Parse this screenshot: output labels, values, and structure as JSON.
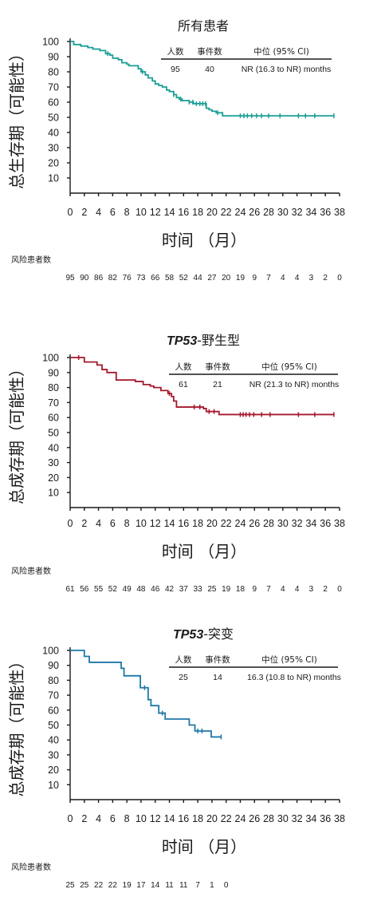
{
  "chart_data": [
    {
      "type": "line",
      "title": "所有患者",
      "title_italic": "",
      "ylabel": "总生存期（可能性）",
      "xlabel": "时间 （月）",
      "color": "#1a9e96",
      "xlim": [
        0,
        38
      ],
      "ylim": [
        0,
        100
      ],
      "xticks": [
        "0",
        "2",
        "4",
        "6",
        "8",
        "10",
        "12",
        "14",
        "16",
        "18",
        "20",
        "22",
        "24",
        "26",
        "28",
        "30",
        "32",
        "34",
        "36",
        "38"
      ],
      "yticks": [
        "10",
        "20",
        "30",
        "40",
        "50",
        "60",
        "70",
        "80",
        "90",
        "100"
      ],
      "x": [
        0,
        0.5,
        1.5,
        2.5,
        3.2,
        4.2,
        5.0,
        5.6,
        6.0,
        6.8,
        7.3,
        8.0,
        8.3,
        8.8,
        9.6,
        10.0,
        10.6,
        11.0,
        11.6,
        12.0,
        12.5,
        13.0,
        13.6,
        14.0,
        14.6,
        15.0,
        15.4,
        15.8,
        16.4,
        16.8,
        17.4,
        18.0,
        19.2,
        19.6,
        20.0,
        20.6,
        21.5,
        37.2
      ],
      "y": [
        100,
        98,
        97,
        96,
        95,
        94,
        92,
        91,
        89,
        88,
        86,
        85,
        84,
        84,
        82,
        80,
        78,
        76,
        74,
        72,
        71,
        70,
        68,
        67,
        65,
        63,
        62,
        61,
        61,
        60,
        59,
        59,
        56,
        55,
        54,
        53,
        51,
        51
      ],
      "censor_x": [
        5.3,
        10.2,
        14.6,
        15.6,
        16.8,
        17.3,
        17.8,
        18.3,
        18.7,
        19.1,
        20.8,
        24.0,
        24.5,
        25.0,
        25.6,
        26.3,
        27.0,
        28.0,
        29.6,
        32.2,
        33.2,
        34.5,
        37.2
      ],
      "stats": {
        "h_n": "人数",
        "h_events": "事件数",
        "h_median": "中位 (95% CI)",
        "n": "95",
        "events": "40",
        "median": "NR (16.3 to NR) months"
      },
      "risk_title": "风险患者数",
      "at_risk": [
        "95",
        "90",
        "86",
        "82",
        "76",
        "73",
        "66",
        "58",
        "52",
        "44",
        "27",
        "20",
        "19",
        "9",
        "7",
        "4",
        "4",
        "3",
        "2",
        "0"
      ]
    },
    {
      "type": "line",
      "title": "-野生型",
      "title_italic": "TP53",
      "ylabel": "总成存期（可能性）",
      "xlabel": "时间 （月）",
      "color": "#a5192d",
      "xlim": [
        0,
        38
      ],
      "ylim": [
        0,
        100
      ],
      "xticks": [
        "0",
        "2",
        "4",
        "6",
        "8",
        "10",
        "12",
        "14",
        "16",
        "18",
        "20",
        "22",
        "24",
        "26",
        "28",
        "30",
        "32",
        "34",
        "36",
        "38"
      ],
      "yticks": [
        "10",
        "20",
        "30",
        "40",
        "50",
        "60",
        "70",
        "80",
        "90",
        "100"
      ],
      "x": [
        0,
        2.0,
        3.8,
        4.5,
        5.2,
        6.5,
        9.2,
        10.3,
        11.3,
        11.8,
        12.8,
        13.8,
        14.3,
        14.6,
        15.0,
        18.8,
        19.2,
        21.0,
        37.2
      ],
      "y": [
        100,
        97,
        95,
        92,
        90,
        85,
        84,
        82,
        81,
        80,
        78,
        76,
        74,
        71,
        67,
        66,
        64,
        62,
        62
      ],
      "censor_x": [
        1.2,
        14.0,
        17.5,
        18.3,
        19.6,
        20.3,
        24.0,
        24.4,
        24.8,
        25.3,
        25.9,
        27.0,
        28.2,
        32.2,
        34.5,
        37.2
      ],
      "stats": {
        "h_n": "人数",
        "h_events": "事件数",
        "h_median": "中位 (95% CI)",
        "n": "61",
        "events": "21",
        "median": "NR (21.3 to NR) months"
      },
      "risk_title": "风险患者数",
      "at_risk": [
        "61",
        "56",
        "55",
        "52",
        "49",
        "48",
        "46",
        "42",
        "37",
        "33",
        "25",
        "19",
        "18",
        "9",
        "7",
        "4",
        "4",
        "3",
        "2",
        "0"
      ]
    },
    {
      "type": "line",
      "title": "-突变",
      "title_italic": "TP53",
      "ylabel": "总成存期（可能性）",
      "xlabel": "时间 （月）",
      "color": "#1f77a8",
      "xlim": [
        0,
        38
      ],
      "ylim": [
        0,
        100
      ],
      "xticks": [
        "0",
        "2",
        "4",
        "6",
        "8",
        "10",
        "12",
        "14",
        "16",
        "18",
        "20",
        "22",
        "24",
        "26",
        "28",
        "30",
        "32",
        "34",
        "36",
        "38"
      ],
      "yticks": [
        "10",
        "20",
        "30",
        "40",
        "50",
        "60",
        "70",
        "80",
        "90",
        "100"
      ],
      "x": [
        0,
        2.0,
        2.7,
        7.2,
        7.6,
        9.9,
        11.0,
        11.4,
        12.5,
        13.4,
        16.8,
        17.6,
        19.9,
        21.3
      ],
      "y": [
        100,
        96,
        92,
        88,
        83,
        75,
        67,
        63,
        58,
        54,
        50,
        46,
        42,
        42
      ],
      "censor_x": [
        10.5,
        13.0,
        18.0,
        18.6,
        21.3
      ],
      "stats": {
        "h_n": "人数",
        "h_events": "事件数",
        "h_median": "中位 (95% CI)",
        "n": "25",
        "events": "14",
        "median": "16.3 (10.8 to NR) months"
      },
      "risk_title": "风险患者数",
      "at_risk": [
        "25",
        "25",
        "22",
        "22",
        "19",
        "17",
        "14",
        "11",
        "11",
        "7",
        "1",
        "0"
      ]
    }
  ]
}
